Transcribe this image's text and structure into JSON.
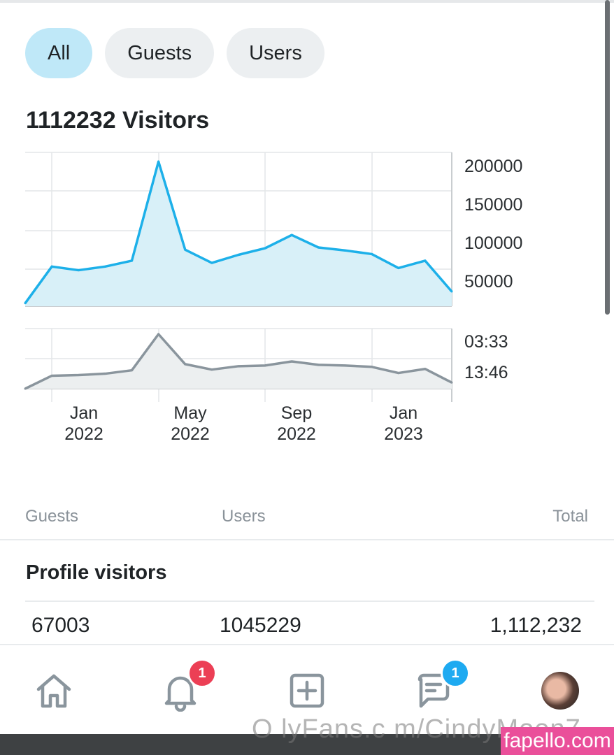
{
  "filters": [
    {
      "label": "All",
      "active": true
    },
    {
      "label": "Guests",
      "active": false
    },
    {
      "label": "Users",
      "active": false
    }
  ],
  "visitors_title": "1112232 Visitors",
  "chart_data": [
    {
      "type": "area",
      "series": [
        {
          "color": "#1db0e9",
          "fill": "#d8f0f8",
          "values": [
            12000,
            62000,
            57000,
            62000,
            70000,
            205000,
            85000,
            67000,
            78000,
            87000,
            105000,
            88000,
            84000,
            79000,
            60000,
            70000,
            28000
          ]
        }
      ],
      "ylim": [
        8000,
        208000
      ],
      "ytick_labels": [
        "200000",
        "150000",
        "100000",
        "50000"
      ],
      "grid": true
    },
    {
      "type": "area",
      "series": [
        {
          "color": "#8a959d",
          "fill": "#eceff0",
          "values": [
            0,
            19,
            20,
            22,
            27,
            80,
            36,
            28,
            33,
            34,
            40,
            35,
            34,
            32,
            23,
            29,
            9
          ]
        }
      ],
      "ytick_labels": [
        "03:33",
        "13:46"
      ],
      "x_labels": [
        {
          "month": "Jan",
          "year": "2022"
        },
        {
          "month": "May",
          "year": "2022"
        },
        {
          "month": "Sep",
          "year": "2022"
        },
        {
          "month": "Jan",
          "year": "2023"
        }
      ],
      "grid": true
    }
  ],
  "summary": {
    "headers": {
      "guests": "Guests",
      "users": "Users",
      "total": "Total"
    },
    "section_title": "Profile visitors",
    "values": {
      "guests": "67003",
      "users": "1045229",
      "total": "1,112,232"
    }
  },
  "nav": {
    "notifications_badge": "1",
    "messages_badge": "1"
  },
  "watermark": "O lyFans.c m/CindyMoon7",
  "brand_tag": "fapello.com"
}
